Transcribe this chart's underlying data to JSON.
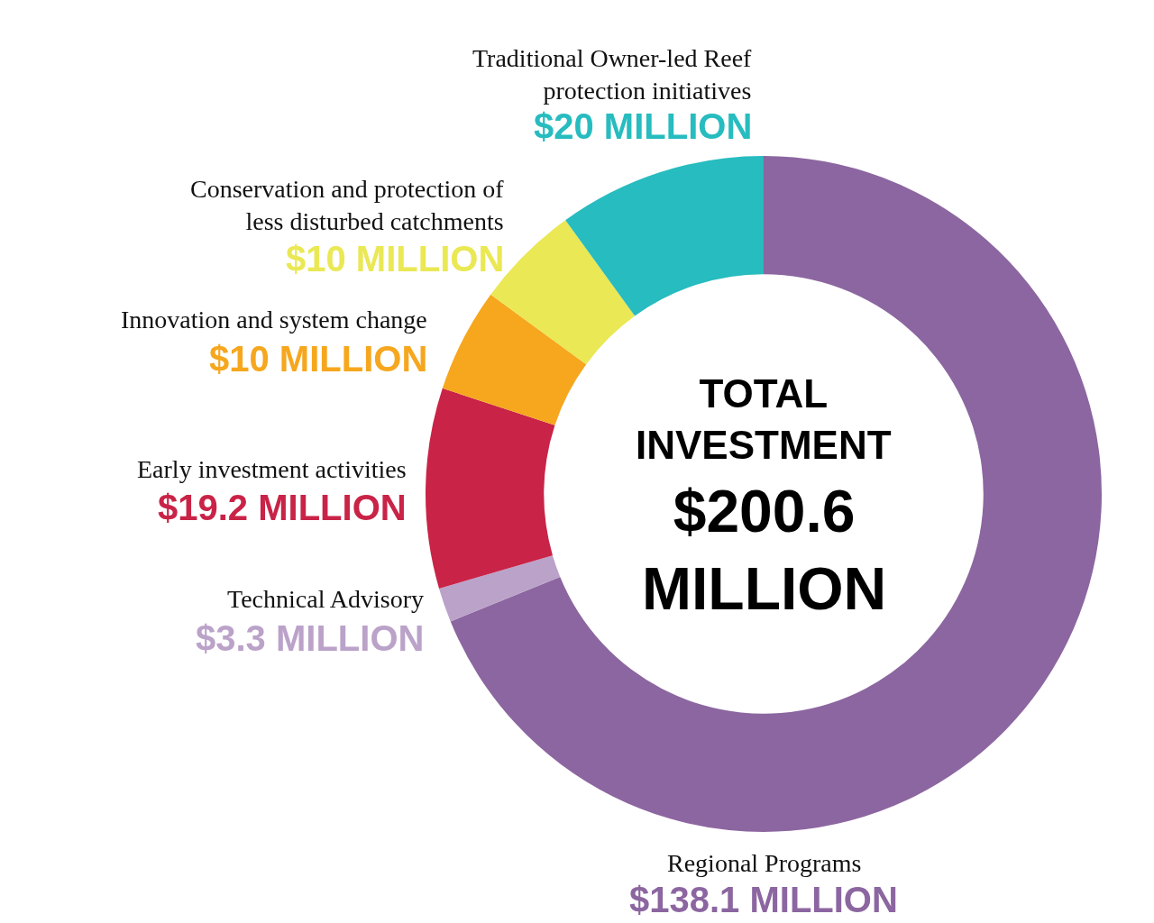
{
  "chart_data": {
    "type": "donut",
    "categories": [
      "Regional Programs",
      "Technical Advisory",
      "Early investment activities",
      "Innovation and system change",
      "Conservation and protection of less disturbed catchments",
      "Traditional Owner-led Reef protection initiatives"
    ],
    "values": [
      138.1,
      3.3,
      19.2,
      10,
      10,
      20
    ],
    "value_labels": [
      "$138.1 MILLION",
      "$3.3 MILLION",
      "$19.2 MILLION",
      "$10 MILLION",
      "$10 MILLION",
      "$20 MILLION"
    ],
    "colors": [
      "#8c66a0",
      "#bba2c9",
      "#c92347",
      "#f6a71e",
      "#eae854",
      "#27bcbf"
    ],
    "annotations": [
      "TOTAL INVESTMENT",
      "$200.6 MILLION"
    ]
  }
}
